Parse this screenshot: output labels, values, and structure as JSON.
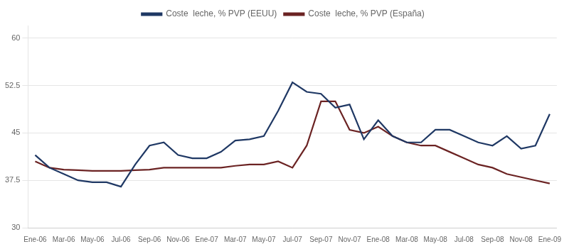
{
  "chart_data": {
    "type": "line",
    "categories": [
      "Ene-06",
      null,
      "Mar-06",
      null,
      "May-06",
      null,
      "Jul-06",
      null,
      "Sep-06",
      null,
      "Nov-06",
      null,
      "Ene-07",
      null,
      "Mar-07",
      null,
      "May-07",
      null,
      "Jul-07",
      null,
      "Sep-07",
      null,
      "Nov-07",
      null,
      "Ene-08",
      null,
      "Mar-08",
      null,
      "May-08",
      null,
      "Jul-08",
      null,
      "Sep-08",
      null,
      "Nov-08",
      null,
      "Ene-09"
    ],
    "series": [
      {
        "name": "Coste  leche, % PVP (EEUU)",
        "color": "#1F3864",
        "values": [
          41.5,
          39.5,
          38.5,
          37.5,
          37.2,
          37.2,
          36.5,
          40.0,
          43.0,
          43.5,
          41.5,
          41.0,
          41.0,
          42.0,
          43.8,
          44.0,
          44.5,
          48.5,
          53.0,
          51.5,
          51.2,
          49.0,
          49.5,
          44.0,
          47.0,
          44.5,
          43.5,
          43.5,
          45.5,
          45.5,
          44.5,
          43.5,
          43.0,
          44.5,
          42.5,
          43.0,
          48.0
        ]
      },
      {
        "name": "Coste  leche, % PVP (España)",
        "color": "#6B2323",
        "values": [
          40.5,
          39.5,
          39.2,
          39.1,
          39.0,
          39.0,
          39.0,
          39.1,
          39.2,
          39.5,
          39.5,
          39.5,
          39.5,
          39.5,
          39.8,
          40.0,
          40.0,
          40.5,
          39.5,
          43.0,
          50.0,
          50.0,
          45.5,
          45.0,
          46.0,
          44.5,
          43.5,
          43.0,
          43.0,
          42.0,
          41.0,
          40.0,
          39.5,
          38.5,
          38.0,
          37.5,
          37.0
        ]
      }
    ],
    "ylim": [
      30,
      62
    ],
    "yticks": [
      30,
      37.5,
      45,
      52.5,
      60
    ],
    "grid": "y",
    "legend": "top"
  }
}
